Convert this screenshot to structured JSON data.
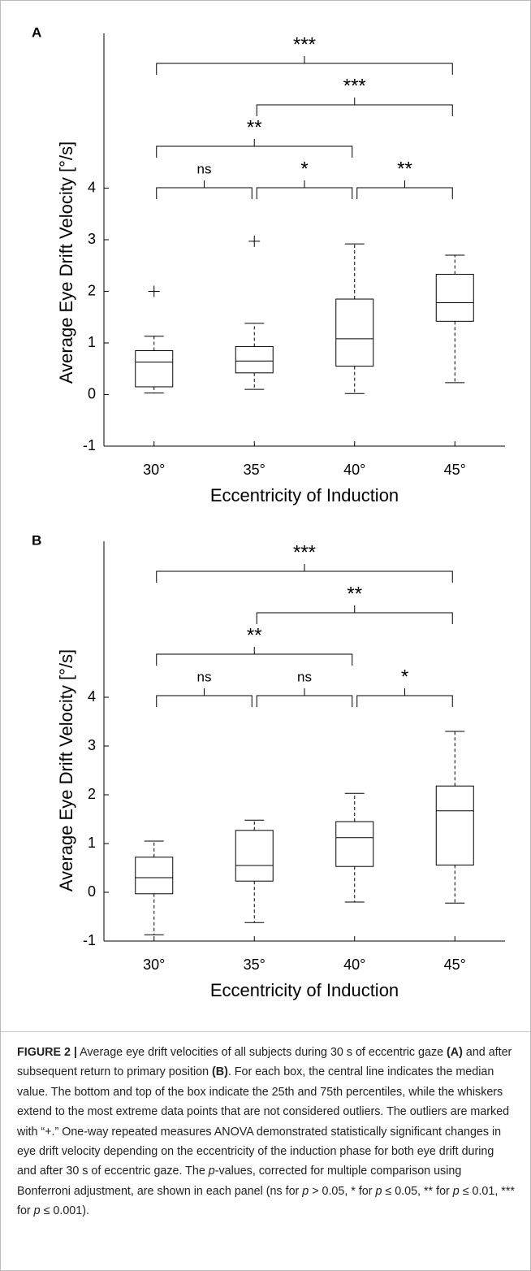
{
  "chart_data": [
    {
      "type": "box",
      "panel_label": "A",
      "y_label": "Average Eye Drift Velocity [°/s]",
      "x_label": "Eccentricity of Induction",
      "categories": [
        "30°",
        "35°",
        "40°",
        "45°"
      ],
      "boxes": [
        {
          "whislo": 0.03,
          "q1": 0.15,
          "med": 0.63,
          "q3": 0.85,
          "whishi": 1.13,
          "fliers": [
            2.0
          ]
        },
        {
          "whislo": 0.1,
          "q1": 0.42,
          "med": 0.65,
          "q3": 0.93,
          "whishi": 1.38,
          "fliers": [
            2.97
          ]
        },
        {
          "whislo": 0.02,
          "q1": 0.55,
          "med": 1.08,
          "q3": 1.85,
          "whishi": 2.92,
          "fliers": []
        },
        {
          "whislo": 0.23,
          "q1": 1.42,
          "med": 1.78,
          "q3": 2.33,
          "whishi": 2.7,
          "fliers": []
        }
      ],
      "ylim": [
        -1,
        7
      ],
      "yticks": [
        -1,
        0,
        1,
        2,
        3,
        4
      ],
      "comparisons": [
        {
          "pair": [
            "30°",
            "35°"
          ],
          "label": "ns"
        },
        {
          "pair": [
            "35°",
            "40°"
          ],
          "label": "*"
        },
        {
          "pair": [
            "40°",
            "45°"
          ],
          "label": "**"
        },
        {
          "pair": [
            "30°",
            "40°"
          ],
          "label": "**"
        },
        {
          "pair": [
            "35°",
            "45°"
          ],
          "label": "***"
        },
        {
          "pair": [
            "30°",
            "45°"
          ],
          "label": "***"
        }
      ]
    },
    {
      "type": "box",
      "panel_label": "B",
      "y_label": "Average Eye Drift Velocity [°/s]",
      "x_label": "Eccentricity of Induction",
      "categories": [
        "30°",
        "35°",
        "40°",
        "45°"
      ],
      "boxes": [
        {
          "whislo": -0.87,
          "q1": -0.03,
          "med": 0.3,
          "q3": 0.72,
          "whishi": 1.05,
          "fliers": []
        },
        {
          "whislo": -0.62,
          "q1": 0.23,
          "med": 0.55,
          "q3": 1.27,
          "whishi": 1.48,
          "fliers": []
        },
        {
          "whislo": -0.2,
          "q1": 0.53,
          "med": 1.12,
          "q3": 1.45,
          "whishi": 2.03,
          "fliers": []
        },
        {
          "whislo": -0.22,
          "q1": 0.56,
          "med": 1.67,
          "q3": 2.18,
          "whishi": 3.3,
          "fliers": []
        }
      ],
      "ylim": [
        -1,
        7.2
      ],
      "yticks": [
        -1,
        0,
        1,
        2,
        3,
        4
      ],
      "comparisons": [
        {
          "pair": [
            "30°",
            "35°"
          ],
          "label": "ns"
        },
        {
          "pair": [
            "35°",
            "40°"
          ],
          "label": "ns"
        },
        {
          "pair": [
            "40°",
            "45°"
          ],
          "label": "*"
        },
        {
          "pair": [
            "30°",
            "40°"
          ],
          "label": "**"
        },
        {
          "pair": [
            "35°",
            "45°"
          ],
          "label": "**"
        },
        {
          "pair": [
            "30°",
            "45°"
          ],
          "label": "***"
        }
      ]
    }
  ],
  "caption": {
    "segments": [
      {
        "text": "FIGURE 2 |",
        "style": "bold"
      },
      {
        "text": " Average eye drift velocities of all subjects during 30 s of eccentric gaze ",
        "style": "normal"
      },
      {
        "text": "(A)",
        "style": "bold"
      },
      {
        "text": " and after subsequent return to primary position ",
        "style": "normal"
      },
      {
        "text": "(B)",
        "style": "bold"
      },
      {
        "text": ". For each box, the central line indicates the median value. The bottom and top of the box indicate the 25th and 75th percentiles, while the whiskers extend to the most extreme data points that are not considered outliers. The outliers are marked with “+.” One-way repeated measures ANOVA demonstrated statistically significant changes in eye drift velocity depending on the eccentricity of the induction phase for both eye drift during and after 30 s of eccentric gaze. The ",
        "style": "normal"
      },
      {
        "text": "p",
        "style": "italic"
      },
      {
        "text": "-values, corrected for multiple comparison using Bonferroni adjustment, are shown in each panel (ns for ",
        "style": "normal"
      },
      {
        "text": "p",
        "style": "italic"
      },
      {
        "text": " > 0.05, * for ",
        "style": "normal"
      },
      {
        "text": "p",
        "style": "italic"
      },
      {
        "text": " ≤ 0.05, ** for ",
        "style": "normal"
      },
      {
        "text": "p",
        "style": "italic"
      },
      {
        "text": " ≤ 0.01, *** for ",
        "style": "normal"
      },
      {
        "text": "p",
        "style": "italic"
      },
      {
        "text": " ≤ 0.001).",
        "style": "normal"
      }
    ]
  }
}
